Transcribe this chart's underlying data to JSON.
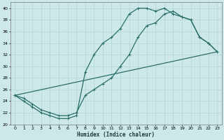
{
  "xlabel": "Humidex (Indice chaleur)",
  "bg_color": "#cce8e8",
  "grid_color": "#b8d8d8",
  "line_color": "#2a6e6a",
  "xlim": [
    -0.5,
    23.5
  ],
  "ylim": [
    20,
    41
  ],
  "xticks": [
    0,
    1,
    2,
    3,
    4,
    5,
    6,
    7,
    8,
    9,
    10,
    11,
    12,
    13,
    14,
    15,
    16,
    17,
    18,
    19,
    20,
    21,
    22,
    23
  ],
  "yticks": [
    20,
    22,
    24,
    26,
    28,
    30,
    32,
    34,
    36,
    38,
    40
  ],
  "line1_x": [
    0,
    1,
    2,
    3,
    4,
    5,
    6,
    7,
    8,
    9,
    10,
    11,
    12,
    13,
    14,
    15,
    16,
    17,
    18,
    19,
    20,
    21,
    22,
    23
  ],
  "line1_y": [
    25,
    24,
    23,
    22,
    21.5,
    21,
    21,
    21.5,
    29,
    32,
    34,
    35,
    36.5,
    39,
    40,
    40,
    39.5,
    40,
    39,
    38.5,
    38,
    35,
    34,
    32.5
  ],
  "line2_x": [
    0,
    1,
    2,
    3,
    4,
    5,
    6,
    7,
    8,
    9,
    10,
    11,
    12,
    13,
    14,
    15,
    16,
    17,
    18,
    19,
    20,
    21,
    22,
    23
  ],
  "line2_y": [
    25,
    24.5,
    23.5,
    22.5,
    22,
    21.5,
    21.5,
    22,
    25,
    26,
    27,
    28,
    30,
    32,
    35,
    37,
    37.5,
    39,
    39.5,
    38.5,
    38,
    35,
    34,
    32.5
  ],
  "line3_x": [
    0,
    23
  ],
  "line3_y": [
    25,
    32.5
  ],
  "marker_size": 2.5,
  "linewidth": 0.9
}
